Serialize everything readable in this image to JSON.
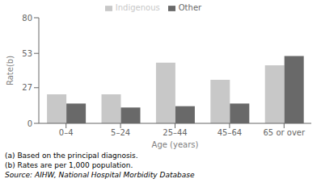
{
  "chart_data": {
    "type": "bar",
    "categories": [
      "0–4",
      "5–24",
      "25–44",
      "45–64",
      "65 or over"
    ],
    "series": [
      {
        "name": "Indigenous",
        "color": "#c8c8c8",
        "values": [
          22,
          22,
          46,
          33,
          44
        ]
      },
      {
        "name": "Other",
        "color": "#696969",
        "values": [
          15,
          12,
          13,
          15,
          51
        ]
      }
    ],
    "xlabel": "Age (years)",
    "ylabel": "Rate(b)",
    "ylim": [
      0,
      80
    ],
    "yticks": [
      0,
      27,
      53,
      80
    ],
    "grid": false,
    "legend": "top",
    "annotations": [
      "(a) Based on the principal diagnosis.",
      "(b) Rates are per 1,000 population.",
      "Source: AIHW, National Hospital Morbidity Database"
    ]
  }
}
